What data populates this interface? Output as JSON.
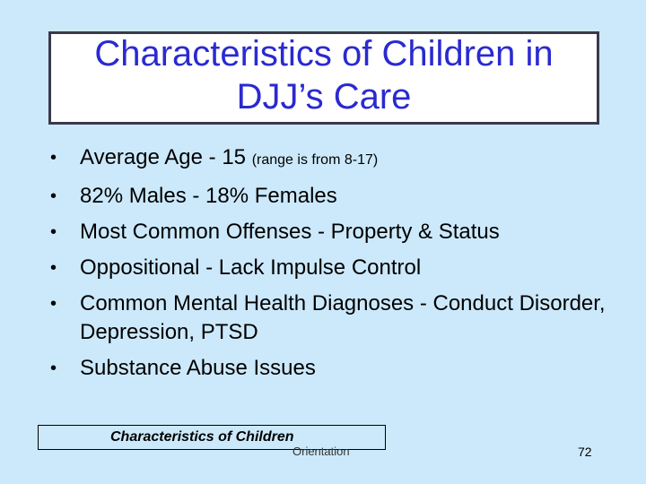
{
  "title": "Characteristics of Children in DJJ’s Care",
  "bullets": [
    {
      "text": "Average Age - 15 ",
      "small": "(range is from 8-17)"
    },
    {
      "text": "82% Males  -  18% Females",
      "small": ""
    },
    {
      "text": "Most Common Offenses - Property & Status",
      "small": ""
    },
    {
      "text": "Oppositional -  Lack Impulse Control",
      "small": ""
    },
    {
      "text": "Common Mental Health Diagnoses - Conduct Disorder, Depression, PTSD",
      "small": ""
    },
    {
      "text": "Substance Abuse Issues",
      "small": ""
    }
  ],
  "bullet_symbol": "•",
  "footer": {
    "label": "Characteristics of Children",
    "section": "Orientation",
    "page": "72"
  },
  "colors": {
    "background": "#cce9fb",
    "title": "#2a2ad0"
  }
}
